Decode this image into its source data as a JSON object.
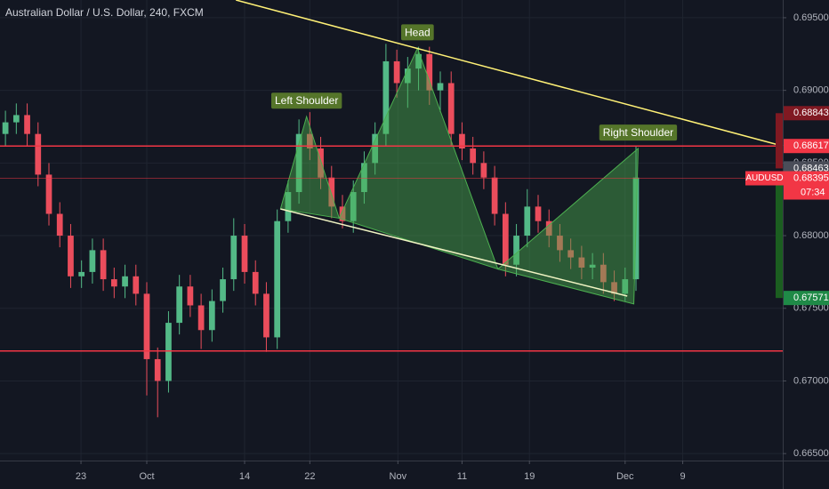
{
  "chart_data": {
    "type": "candlestick",
    "title": "Australian Dollar / U.S. Dollar, 240, FXCM",
    "up_color": "#53b987",
    "down_color": "#eb4d5c",
    "x": [
      0.5,
      1.5,
      2.5,
      3.5,
      4.5,
      5.5,
      6.5,
      7.5,
      8.5,
      9.5,
      10.5,
      11.5,
      12.5,
      13.5,
      14.5,
      15.5,
      16.5,
      17.5,
      18.5,
      19.5,
      20.5,
      21.5,
      22.5,
      23.5,
      24.5,
      25.5,
      26.5,
      27.5,
      28.5,
      29.5,
      30.5,
      31.5,
      32.5,
      33.5,
      34.5,
      35.5,
      36.5,
      37.5,
      38.5,
      39.5,
      40.5,
      41.5,
      42.5,
      43.5,
      44.5,
      45.5,
      46.5,
      47.5,
      48.5,
      49.5,
      50.5,
      51.5,
      52.5,
      53.5,
      54.5,
      55.5,
      56.5,
      57.5,
      58.5
    ],
    "open": [
      0.687,
      0.6878,
      0.6883,
      0.687,
      0.6842,
      0.6815,
      0.68,
      0.6772,
      0.6775,
      0.679,
      0.677,
      0.6765,
      0.6772,
      0.676,
      0.6715,
      0.67,
      0.674,
      0.6765,
      0.6752,
      0.6735,
      0.6755,
      0.677,
      0.68,
      0.6775,
      0.676,
      0.673,
      0.681,
      0.683,
      0.687,
      0.686,
      0.684,
      0.682,
      0.681,
      0.683,
      0.685,
      0.687,
      0.692,
      0.6905,
      0.6915,
      0.6925,
      0.69,
      0.6905,
      0.687,
      0.686,
      0.685,
      0.684,
      0.6815,
      0.678,
      0.68,
      0.682,
      0.681,
      0.68,
      0.679,
      0.6785,
      0.6778,
      0.678,
      0.6768,
      0.676,
      0.677
    ],
    "high": [
      0.6886,
      0.6891,
      0.6891,
      0.6878,
      0.685,
      0.6823,
      0.6808,
      0.6783,
      0.6798,
      0.6798,
      0.6778,
      0.678,
      0.678,
      0.6768,
      0.6723,
      0.6748,
      0.6773,
      0.6773,
      0.676,
      0.6763,
      0.6778,
      0.6812,
      0.6808,
      0.6783,
      0.6768,
      0.6818,
      0.6838,
      0.688,
      0.6885,
      0.6868,
      0.6848,
      0.6828,
      0.6838,
      0.6858,
      0.6878,
      0.6932,
      0.6928,
      0.6923,
      0.693,
      0.693,
      0.6913,
      0.6913,
      0.6878,
      0.6868,
      0.6858,
      0.6848,
      0.6823,
      0.6808,
      0.6832,
      0.6828,
      0.6818,
      0.6808,
      0.6798,
      0.6793,
      0.6788,
      0.6788,
      0.6776,
      0.6778,
      0.6862
    ],
    "low": [
      0.6862,
      0.687,
      0.6862,
      0.6834,
      0.6807,
      0.6792,
      0.6764,
      0.6764,
      0.6767,
      0.6762,
      0.6757,
      0.6757,
      0.6752,
      0.669,
      0.6675,
      0.6692,
      0.6732,
      0.6744,
      0.6722,
      0.6727,
      0.6747,
      0.6762,
      0.6767,
      0.6752,
      0.672,
      0.6722,
      0.6802,
      0.6822,
      0.6852,
      0.6832,
      0.6812,
      0.6805,
      0.6802,
      0.6822,
      0.6842,
      0.6862,
      0.6895,
      0.6888,
      0.69,
      0.689,
      0.6885,
      0.6862,
      0.6852,
      0.6842,
      0.6832,
      0.6807,
      0.6772,
      0.6772,
      0.6792,
      0.6802,
      0.6792,
      0.6782,
      0.6777,
      0.677,
      0.677,
      0.676,
      0.6755,
      0.6755,
      0.6762
    ],
    "close": [
      0.6878,
      0.6883,
      0.687,
      0.6842,
      0.6815,
      0.68,
      0.6772,
      0.6775,
      0.679,
      0.677,
      0.6765,
      0.6772,
      0.676,
      0.6715,
      0.67,
      0.674,
      0.6765,
      0.6752,
      0.6735,
      0.6755,
      0.677,
      0.68,
      0.6775,
      0.676,
      0.673,
      0.681,
      0.683,
      0.687,
      0.686,
      0.684,
      0.682,
      0.681,
      0.683,
      0.685,
      0.687,
      0.692,
      0.6905,
      0.6915,
      0.6925,
      0.69,
      0.6905,
      0.687,
      0.686,
      0.685,
      0.684,
      0.6815,
      0.678,
      0.68,
      0.682,
      0.681,
      0.68,
      0.679,
      0.6785,
      0.6778,
      0.678,
      0.6768,
      0.676,
      0.677,
      0.684
    ],
    "xlim": [
      0,
      72
    ],
    "xticks": [
      {
        "value": 7.45,
        "label": "23"
      },
      {
        "value": 13.5,
        "label": "Oct"
      },
      {
        "value": 22.5,
        "label": "14"
      },
      {
        "value": 28.5,
        "label": "22"
      },
      {
        "value": 36.6,
        "label": "Nov"
      },
      {
        "value": 42.5,
        "label": "11"
      },
      {
        "value": 48.7,
        "label": "19"
      },
      {
        "value": 57.5,
        "label": "Dec"
      },
      {
        "value": 62.8,
        "label": "9"
      }
    ],
    "ylim": [
      0.66452,
      0.69622
    ],
    "yticks": [
      {
        "value": 0.665,
        "label": "0.66500"
      },
      {
        "value": 0.67,
        "label": "0.67000"
      },
      {
        "value": 0.675,
        "label": "0.67500"
      },
      {
        "value": 0.68,
        "label": "0.68000"
      },
      {
        "value": 0.685,
        "label": "0.68500"
      },
      {
        "value": 0.69,
        "label": "0.69000"
      },
      {
        "value": 0.695,
        "label": "0.69500"
      }
    ],
    "grid": true,
    "levels": [
      {
        "value": 0.68617,
        "color": "#f23645",
        "width": 1.5
      },
      {
        "value": 0.68395,
        "color": "#f23645",
        "width": 0.6
      },
      {
        "value": 0.67206,
        "color": "#f23645",
        "width": 1.5
      }
    ],
    "price_tags": [
      {
        "value": 0.68843,
        "color": "#801922"
      },
      {
        "value": 0.68617,
        "color": "#f23645"
      },
      {
        "value": 0.68463,
        "color": "#4a4e59"
      },
      {
        "value": 0.68395,
        "color": "#f23645",
        "symbol": "AUDUSD",
        "countdown": "07:34"
      },
      {
        "value": 0.67571,
        "color": "#1f8a47"
      }
    ],
    "range_bars": [
      {
        "from": 0.68843,
        "to": 0.68463,
        "color": "#801922"
      },
      {
        "from": 0.68395,
        "to": 0.67571,
        "color": "#1b5e20"
      }
    ],
    "trendlines": [
      {
        "x": [
          21.7,
          72
        ],
        "y": [
          0.69622,
          0.68617
        ],
        "color": "#fff176"
      },
      {
        "x": [
          25.8,
          57.7
        ],
        "y": [
          0.68184,
          0.67584
        ],
        "color": "#f0f4c3"
      }
    ],
    "pattern_color": "#4caf50",
    "triangles": [
      {
        "x": [
          25.8,
          28.2,
          31.2
        ],
        "y": [
          0.68184,
          0.6882,
          0.6812
        ]
      },
      {
        "x": [
          31.2,
          38.4,
          45.8
        ],
        "y": [
          0.6812,
          0.6929,
          0.6777
        ]
      },
      {
        "x": [
          45.8,
          58.7,
          58.3
        ],
        "y": [
          0.6777,
          0.686,
          0.6753
        ]
      }
    ],
    "annotations": [
      {
        "text": "Left Shoulder",
        "x": 28.2,
        "y": 0.6882
      },
      {
        "text": "Head",
        "x": 38.4,
        "y": 0.6929
      },
      {
        "text": "Right Shoulder",
        "x": 58.7,
        "y": 0.686
      }
    ]
  }
}
